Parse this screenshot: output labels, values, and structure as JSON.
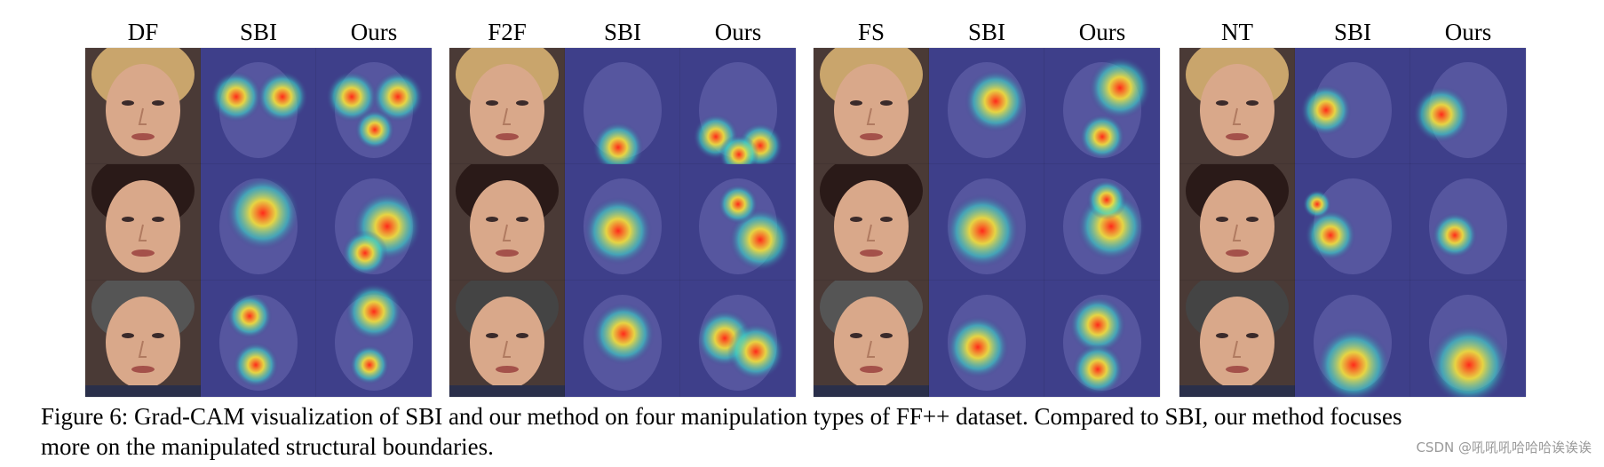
{
  "figure": {
    "panels": [
      {
        "columns": [
          "DF",
          "SBI",
          "Ours"
        ]
      },
      {
        "columns": [
          "F2F",
          "SBI",
          "Ours"
        ]
      },
      {
        "columns": [
          "FS",
          "SBI",
          "Ours"
        ]
      },
      {
        "columns": [
          "NT",
          "SBI",
          "Ours"
        ]
      }
    ],
    "caption_line1": "Figure 6: Grad-CAM visualization of SBI and our method on four manipulation types of FF++ dataset. Compared to SBI, our method focuses",
    "caption_line2": "more on the manipulated structural boundaries.",
    "watermark": "CSDN @吼吼吼哈哈哈诶诶诶",
    "colors": {
      "heatmap_background": "#3e3f8a",
      "heatmap_hot": "#ff2a1a",
      "heatmap_warm": "#f6e23a",
      "heatmap_cool": "#3ad6c8",
      "skin": "#d9a88a",
      "hair_blonde": "#c9a56c",
      "hair_dark": "#2a1a18"
    },
    "icons": [
      "face-photo",
      "gradcam-heatmap"
    ]
  }
}
